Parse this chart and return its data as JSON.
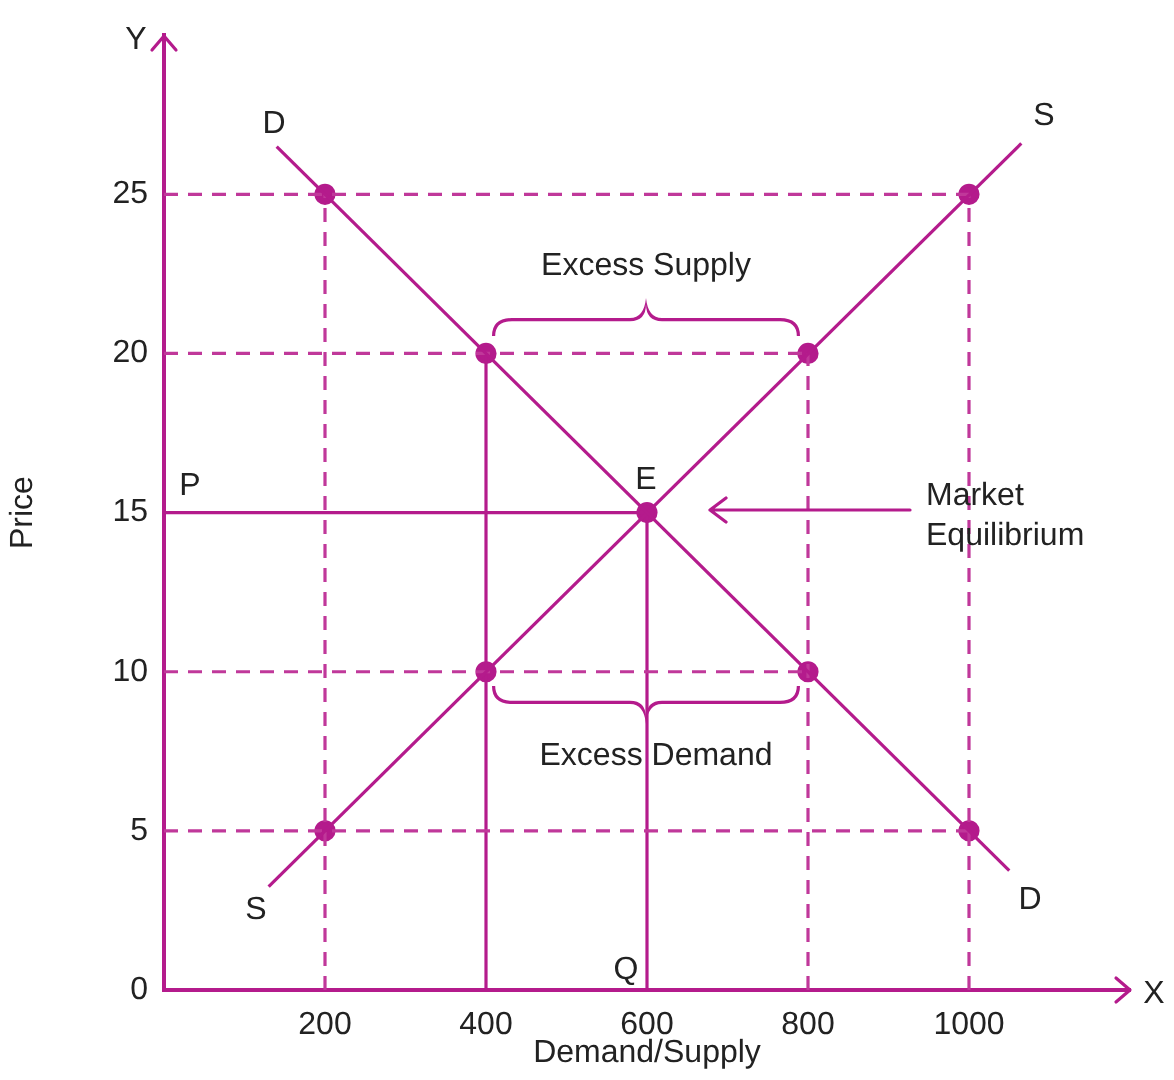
{
  "chart_data": {
    "type": "line",
    "xlabel": "Demand/Supply",
    "ylabel": "Price",
    "xlim": [
      0,
      1200
    ],
    "ylim": [
      0,
      30
    ],
    "xticks": [
      200,
      400,
      600,
      800,
      1000
    ],
    "yticks": [
      0,
      5,
      10,
      15,
      20,
      25
    ],
    "grid": false,
    "legend": false,
    "series": [
      {
        "type": "line",
        "color": "#b41b8c",
        "x": [
          140,
          1050
        ],
        "values": [
          26.5,
          3.75
        ],
        "marker": "none",
        "line_style": "solid"
      },
      {
        "type": "line",
        "color": "#b41b8c",
        "x": [
          130,
          1065
        ],
        "values": [
          3.25,
          26.6
        ],
        "marker": "none",
        "line_style": "solid"
      },
      {
        "type": "line",
        "color": "#c0389a",
        "x": [
          0,
          1000
        ],
        "values": [
          25,
          25
        ],
        "marker": "none",
        "line_style": "dashed"
      },
      {
        "type": "line",
        "color": "#c0389a",
        "x": [
          0,
          800
        ],
        "values": [
          20,
          20
        ],
        "marker": "none",
        "line_style": "dashed"
      },
      {
        "type": "line",
        "color": "#c0389a",
        "x": [
          0,
          800
        ],
        "values": [
          10,
          10
        ],
        "marker": "none",
        "line_style": "dashed"
      },
      {
        "type": "line",
        "color": "#c0389a",
        "x": [
          0,
          1000
        ],
        "values": [
          5,
          5
        ],
        "marker": "none",
        "line_style": "dashed"
      },
      {
        "type": "line",
        "color": "#c0389a",
        "x": [
          200,
          200
        ],
        "values": [
          0,
          25
        ],
        "marker": "none",
        "line_style": "dashed"
      },
      {
        "type": "line",
        "color": "#c0389a",
        "x": [
          800,
          800
        ],
        "values": [
          0,
          20
        ],
        "marker": "none",
        "line_style": "dashed"
      },
      {
        "type": "line",
        "color": "#c0389a",
        "x": [
          1000,
          1000
        ],
        "values": [
          0,
          25
        ],
        "marker": "none",
        "line_style": "dashed"
      },
      {
        "type": "line",
        "color": "#b41b8c",
        "x": [
          0,
          600
        ],
        "values": [
          15,
          15
        ],
        "marker": "none",
        "line_style": "solid"
      },
      {
        "type": "line",
        "color": "#b41b8c",
        "x": [
          400,
          400
        ],
        "values": [
          0,
          20
        ],
        "marker": "none",
        "line_style": "solid"
      },
      {
        "type": "line",
        "color": "#b41b8c",
        "x": [
          600,
          600
        ],
        "values": [
          0,
          15
        ],
        "marker": "none",
        "line_style": "solid"
      },
      {
        "type": "scatter",
        "color": "#b41b8c",
        "x": [
          200,
          400,
          800,
          1000,
          400,
          600,
          800,
          200,
          1000
        ],
        "values": [
          25,
          20,
          20,
          25,
          10,
          15,
          10,
          5,
          5
        ],
        "marker": "circle"
      }
    ],
    "annotations": [
      "Y",
      "X",
      "D",
      "S",
      "S",
      "D",
      "E",
      "P",
      "Q",
      "Excess Supply",
      "Excess Demand",
      "Market\nEquilibrium"
    ]
  }
}
